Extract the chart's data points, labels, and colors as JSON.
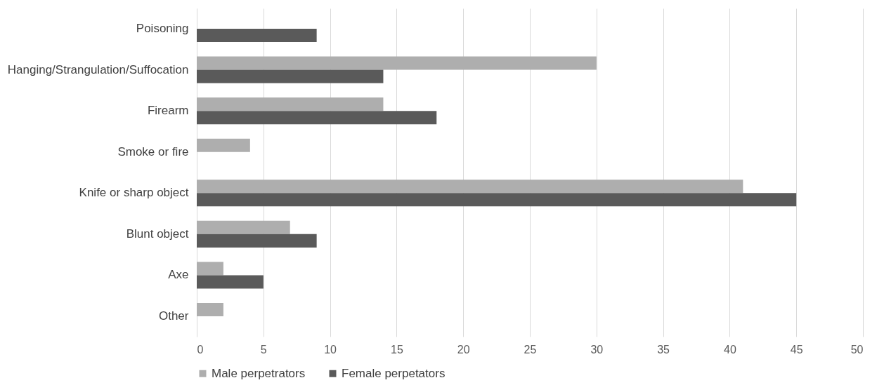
{
  "chart_data": {
    "type": "bar",
    "orientation": "horizontal",
    "categories": [
      "Poisoning",
      "Hanging/Strangulation/Suffocation",
      "Firearm",
      "Smoke or fire",
      "Knife or sharp object",
      "Blunt object",
      "Axe",
      "Other"
    ],
    "series": [
      {
        "name": "Male perpetrators",
        "color": "#aeaeae",
        "values": [
          null,
          30,
          14,
          4,
          41,
          7,
          2,
          2
        ]
      },
      {
        "name": "Female perpetators",
        "color": "#5a5a5a",
        "values": [
          9,
          14,
          18,
          null,
          45,
          9,
          5,
          null
        ]
      }
    ],
    "xlim": [
      0,
      50
    ],
    "xticks": [
      0,
      5,
      10,
      15,
      20,
      25,
      30,
      35,
      40,
      45,
      50
    ],
    "grid": "x",
    "legend": "bottom"
  }
}
